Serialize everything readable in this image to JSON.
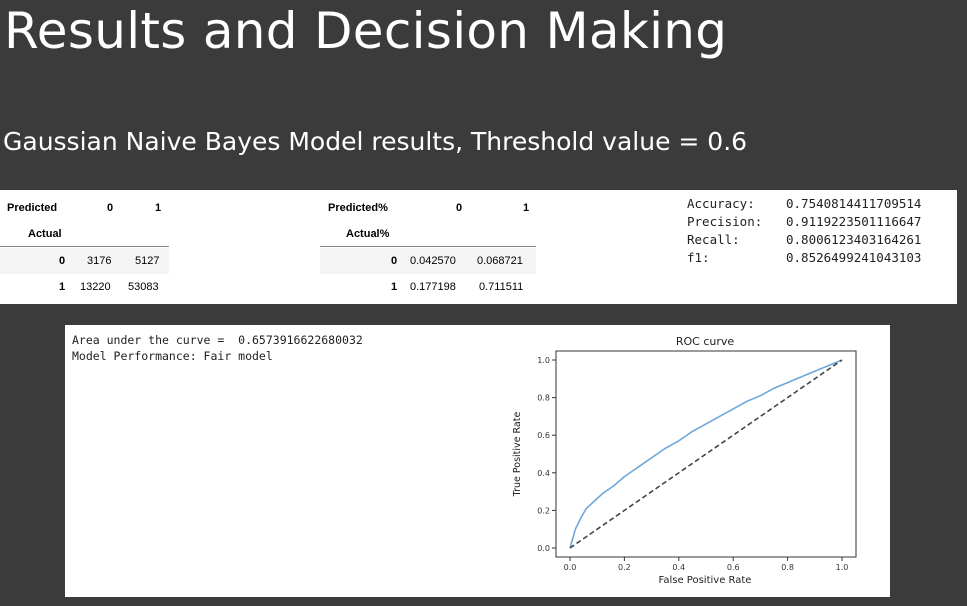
{
  "slide": {
    "title": "Results and Decision Making",
    "subtitle": "Gaussian Naive Bayes Model results, Threshold value = 0.6"
  },
  "confusion_counts": {
    "col_header": "Predicted",
    "row_header": "Actual",
    "columns": [
      "0",
      "1"
    ],
    "rows": [
      {
        "label": "0",
        "values": [
          "3176",
          "5127"
        ]
      },
      {
        "label": "1",
        "values": [
          "13220",
          "53083"
        ]
      }
    ]
  },
  "confusion_pct": {
    "col_header": "Predicted%",
    "row_header": "Actual%",
    "columns": [
      "0",
      "1"
    ],
    "rows": [
      {
        "label": "0",
        "values": [
          "0.042570",
          "0.068721"
        ]
      },
      {
        "label": "1",
        "values": [
          "0.177198",
          "0.711511"
        ]
      }
    ]
  },
  "metrics": [
    {
      "label": "Accuracy:",
      "value": "0.7540814411709514"
    },
    {
      "label": "Precision:",
      "value": "0.9119223501116647"
    },
    {
      "label": "Recall:",
      "value": "0.8006123403164261"
    },
    {
      "label": "f1:",
      "value": "0.8526499241043103"
    }
  ],
  "auc_output": {
    "line1": "Area under the curve =  0.6573916622680032",
    "line2": "Model Performance: Fair model"
  },
  "chart_data": {
    "type": "line",
    "title": "ROC curve",
    "xlabel": "False Positive Rate",
    "ylabel": "True Positive Rate",
    "xlim": [
      0,
      1
    ],
    "ylim": [
      0,
      1
    ],
    "xticks": [
      "0.0",
      "0.2",
      "0.4",
      "0.6",
      "0.8",
      "1.0"
    ],
    "yticks": [
      "0.0",
      "0.2",
      "0.4",
      "0.6",
      "0.8",
      "1.0"
    ],
    "grid": false,
    "series": [
      {
        "style": "solid",
        "color": "#6fa8dc",
        "x": [
          0.0,
          0.01,
          0.02,
          0.04,
          0.06,
          0.09,
          0.12,
          0.16,
          0.2,
          0.25,
          0.3,
          0.35,
          0.4,
          0.45,
          0.5,
          0.55,
          0.6,
          0.65,
          0.7,
          0.75,
          0.8,
          0.85,
          0.9,
          0.95,
          1.0
        ],
        "y": [
          0.0,
          0.05,
          0.1,
          0.16,
          0.21,
          0.25,
          0.29,
          0.33,
          0.38,
          0.43,
          0.48,
          0.53,
          0.57,
          0.62,
          0.66,
          0.7,
          0.74,
          0.78,
          0.81,
          0.85,
          0.88,
          0.91,
          0.94,
          0.97,
          1.0
        ]
      },
      {
        "style": "dashed",
        "color": "#444444",
        "x": [
          0.0,
          1.0
        ],
        "y": [
          0.0,
          1.0
        ]
      }
    ]
  }
}
